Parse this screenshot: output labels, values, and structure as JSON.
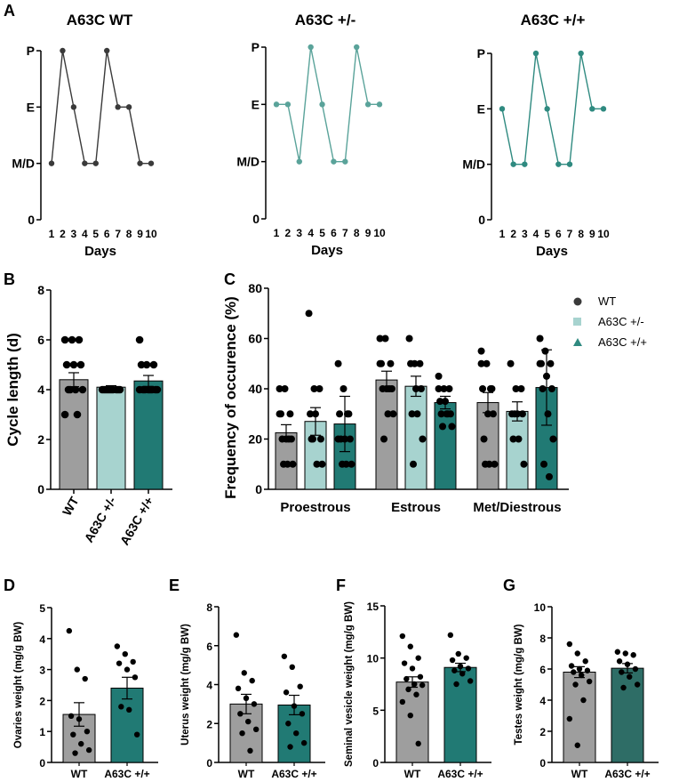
{
  "colors": {
    "wt_dark": "#3a3a3a",
    "het_line": "#5aa39a",
    "hom_line": "#2f8a80",
    "wt_bar": "#9e9e9e",
    "het_bar": "#a7d3cf",
    "hom_bar": "#217a74",
    "dot": "#000000"
  },
  "chart_data": [
    {
      "id": "A1",
      "panel_label": "A",
      "type": "line",
      "title": "A63C WT",
      "xlabel": "Days",
      "x": [
        1,
        2,
        3,
        4,
        5,
        6,
        7,
        8,
        9,
        10
      ],
      "y": [
        1,
        3,
        2,
        1,
        1,
        3,
        2,
        2,
        1,
        1
      ],
      "y_tick_labels": [
        "0",
        "M/D",
        "E",
        "P"
      ],
      "color": "#3a3a3a"
    },
    {
      "id": "A2",
      "type": "line",
      "title": "A63C +/-",
      "xlabel": "Days",
      "x": [
        1,
        2,
        3,
        4,
        5,
        6,
        7,
        8,
        9,
        10
      ],
      "y": [
        2,
        2,
        1,
        3,
        2,
        1,
        1,
        3,
        2,
        2
      ],
      "y_tick_labels": [
        "0",
        "M/D",
        "E",
        "P"
      ],
      "color": "#5aa39a"
    },
    {
      "id": "A3",
      "type": "line",
      "title": "A63C +/+",
      "xlabel": "Days",
      "x": [
        1,
        2,
        3,
        4,
        5,
        6,
        7,
        8,
        9,
        10
      ],
      "y": [
        2,
        1,
        1,
        3,
        2,
        1,
        1,
        3,
        2,
        2
      ],
      "y_tick_labels": [
        "0",
        "M/D",
        "E",
        "P"
      ],
      "color": "#2f8a80"
    },
    {
      "id": "B",
      "panel_label": "B",
      "type": "bar",
      "ylabel": "Cycle length (d)",
      "ylim": [
        0,
        8
      ],
      "yticks": [
        0,
        2,
        4,
        6,
        8
      ],
      "categories": [
        "WT",
        "A63C +/-",
        "A63C +/+"
      ],
      "values": [
        4.4,
        4.1,
        4.35
      ],
      "errors": [
        0.28,
        0.06,
        0.22
      ],
      "points": [
        [
          6,
          6,
          6,
          5,
          5,
          5,
          4,
          4,
          4,
          4,
          3,
          3
        ],
        [
          4,
          4,
          4,
          4,
          4,
          4,
          4,
          4,
          4,
          4
        ],
        [
          6,
          5,
          5,
          5,
          4,
          4,
          4,
          4,
          4,
          4,
          4,
          4
        ]
      ]
    },
    {
      "id": "C",
      "panel_label": "C",
      "type": "bar",
      "ylabel": "Frequency of occurence (%)",
      "ylim": [
        0,
        80
      ],
      "yticks": [
        0,
        20,
        40,
        60,
        80
      ],
      "categories": [
        "Proestrous",
        "Estrous",
        "Met/Diestrous"
      ],
      "legend": [
        "WT",
        "A63C +/-",
        "A63C +/+"
      ],
      "series": [
        {
          "name": "WT",
          "values": [
            22.5,
            43.5,
            34.5
          ],
          "errors": [
            3.2,
            3.5,
            4.0
          ],
          "points": [
            [
              40,
              40,
              30,
              30,
              20,
              20,
              20,
              10,
              10,
              10,
              20,
              30
            ],
            [
              60,
              60,
              50,
              50,
              40,
              40,
              40,
              30,
              30,
              20,
              40,
              50
            ],
            [
              55,
              50,
              40,
              40,
              30,
              30,
              20,
              10,
              10,
              10,
              40,
              50
            ]
          ]
        },
        {
          "name": "A63C +/-",
          "values": [
            27,
            41,
            31
          ],
          "errors": [
            5.5,
            4.0,
            3.8
          ],
          "points": [
            [
              70,
              40,
              40,
              30,
              30,
              20,
              20,
              10,
              10,
              20
            ],
            [
              60,
              50,
              50,
              50,
              40,
              40,
              30,
              30,
              20,
              10
            ],
            [
              50,
              40,
              40,
              30,
              30,
              30,
              20,
              20,
              10,
              30
            ]
          ]
        },
        {
          "name": "A63C +/+",
          "values": [
            26,
            34.5,
            40.5
          ],
          "errors": [
            11.0,
            2.5,
            15.0
          ],
          "points": [
            [
              50,
              40,
              30,
              30,
              20,
              20,
              20,
              10,
              10,
              10,
              30,
              20
            ],
            [
              45,
              40,
              40,
              35,
              35,
              30,
              30,
              30,
              25,
              25,
              30,
              40
            ],
            [
              60,
              55,
              50,
              50,
              45,
              40,
              40,
              30,
              20,
              10,
              5,
              50
            ]
          ]
        }
      ]
    },
    {
      "id": "D",
      "panel_label": "D",
      "type": "bar",
      "ylabel": "Ovaries weight (mg/g BW)",
      "ylim": [
        0,
        5
      ],
      "yticks": [
        0,
        1,
        2,
        3,
        4,
        5
      ],
      "categories": [
        "WT",
        "A63C +/+"
      ],
      "values": [
        1.55,
        2.4
      ],
      "errors": [
        0.38,
        0.35
      ],
      "points": [
        [
          4.25,
          3.0,
          2.7,
          1.5,
          1.4,
          1.0,
          0.9,
          0.6,
          0.4,
          0.3
        ],
        [
          3.75,
          3.5,
          3.25,
          3.2,
          3.0,
          2.75,
          1.8,
          1.7,
          0.9
        ]
      ]
    },
    {
      "id": "E",
      "panel_label": "E",
      "type": "bar",
      "ylabel": "Uterus weight (mg/g BW)",
      "ylim": [
        0,
        8
      ],
      "yticks": [
        0,
        2,
        4,
        6,
        8
      ],
      "categories": [
        "WT",
        "A63C +/+"
      ],
      "values": [
        3.0,
        2.95
      ],
      "errors": [
        0.5,
        0.5
      ],
      "points": [
        [
          6.55,
          4.6,
          4.2,
          3.8,
          3.3,
          3.0,
          2.5,
          2.1,
          1.7,
          1.5,
          0.6
        ],
        [
          5.45,
          4.9,
          3.9,
          3.6,
          2.9,
          2.5,
          2.0,
          1.5,
          1.0,
          0.8
        ]
      ]
    },
    {
      "id": "F",
      "panel_label": "F",
      "type": "bar",
      "ylabel": "Seminal vesicle weight (mg/g BW)",
      "ylim": [
        0,
        15
      ],
      "yticks": [
        0,
        5,
        10,
        15
      ],
      "categories": [
        "WT",
        "A63C +/+"
      ],
      "values": [
        7.7,
        9.1
      ],
      "errors": [
        0.5,
        0.4
      ],
      "points": [
        [
          12.1,
          11.1,
          10.0,
          9.5,
          9.0,
          8.2,
          8.0,
          7.5,
          7.4,
          7.0,
          6.5,
          5.8,
          4.5,
          1.8
        ],
        [
          12.2,
          10.4,
          10.0,
          9.8,
          9.2,
          9.0,
          8.8,
          8.5,
          7.8,
          7.5
        ]
      ]
    },
    {
      "id": "G",
      "panel_label": "G",
      "type": "bar",
      "ylabel": "Testes weight (mg/g BW)",
      "ylim": [
        0,
        10
      ],
      "yticks": [
        0,
        2,
        4,
        6,
        8,
        10
      ],
      "categories": [
        "WT",
        "A63C +/+"
      ],
      "values": [
        5.8,
        6.05
      ],
      "errors": [
        0.35,
        0.3
      ],
      "points": [
        [
          7.6,
          7.0,
          6.5,
          6.2,
          6.0,
          5.9,
          5.8,
          5.6,
          5.2,
          5.0,
          4.0,
          2.8,
          1.1
        ],
        [
          7.1,
          7.0,
          6.9,
          6.5,
          6.3,
          6.0,
          5.8,
          5.5,
          5.0,
          4.8
        ]
      ]
    }
  ]
}
